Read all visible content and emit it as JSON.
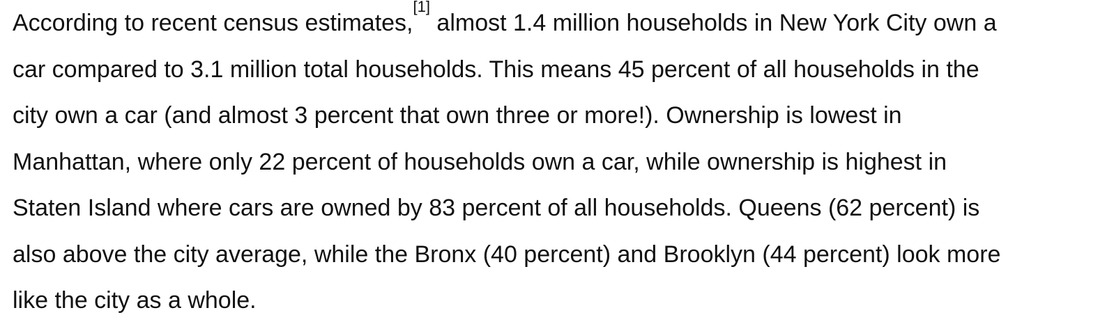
{
  "paragraph": {
    "line_1a": "According to recent census estimates,",
    "footnote": "[1]",
    "line_1b": " almost 1.4 million households in New York City own a",
    "line_2": "car compared to 3.1 million total households. This means 45 percent of all households in the",
    "line_3": "city own a car (and almost 3 percent that own three or more!). Ownership is lowest in",
    "line_4": "Manhattan, where only 22 percent of households own a car, while ownership is highest in",
    "line_5": "Staten Island where cars are owned by 83 percent of all households. Queens (62 percent) is",
    "line_6": "also above the city average, while the Bronx (40 percent) and Brooklyn (44 percent) look more",
    "line_7": "like the city as a whole."
  }
}
